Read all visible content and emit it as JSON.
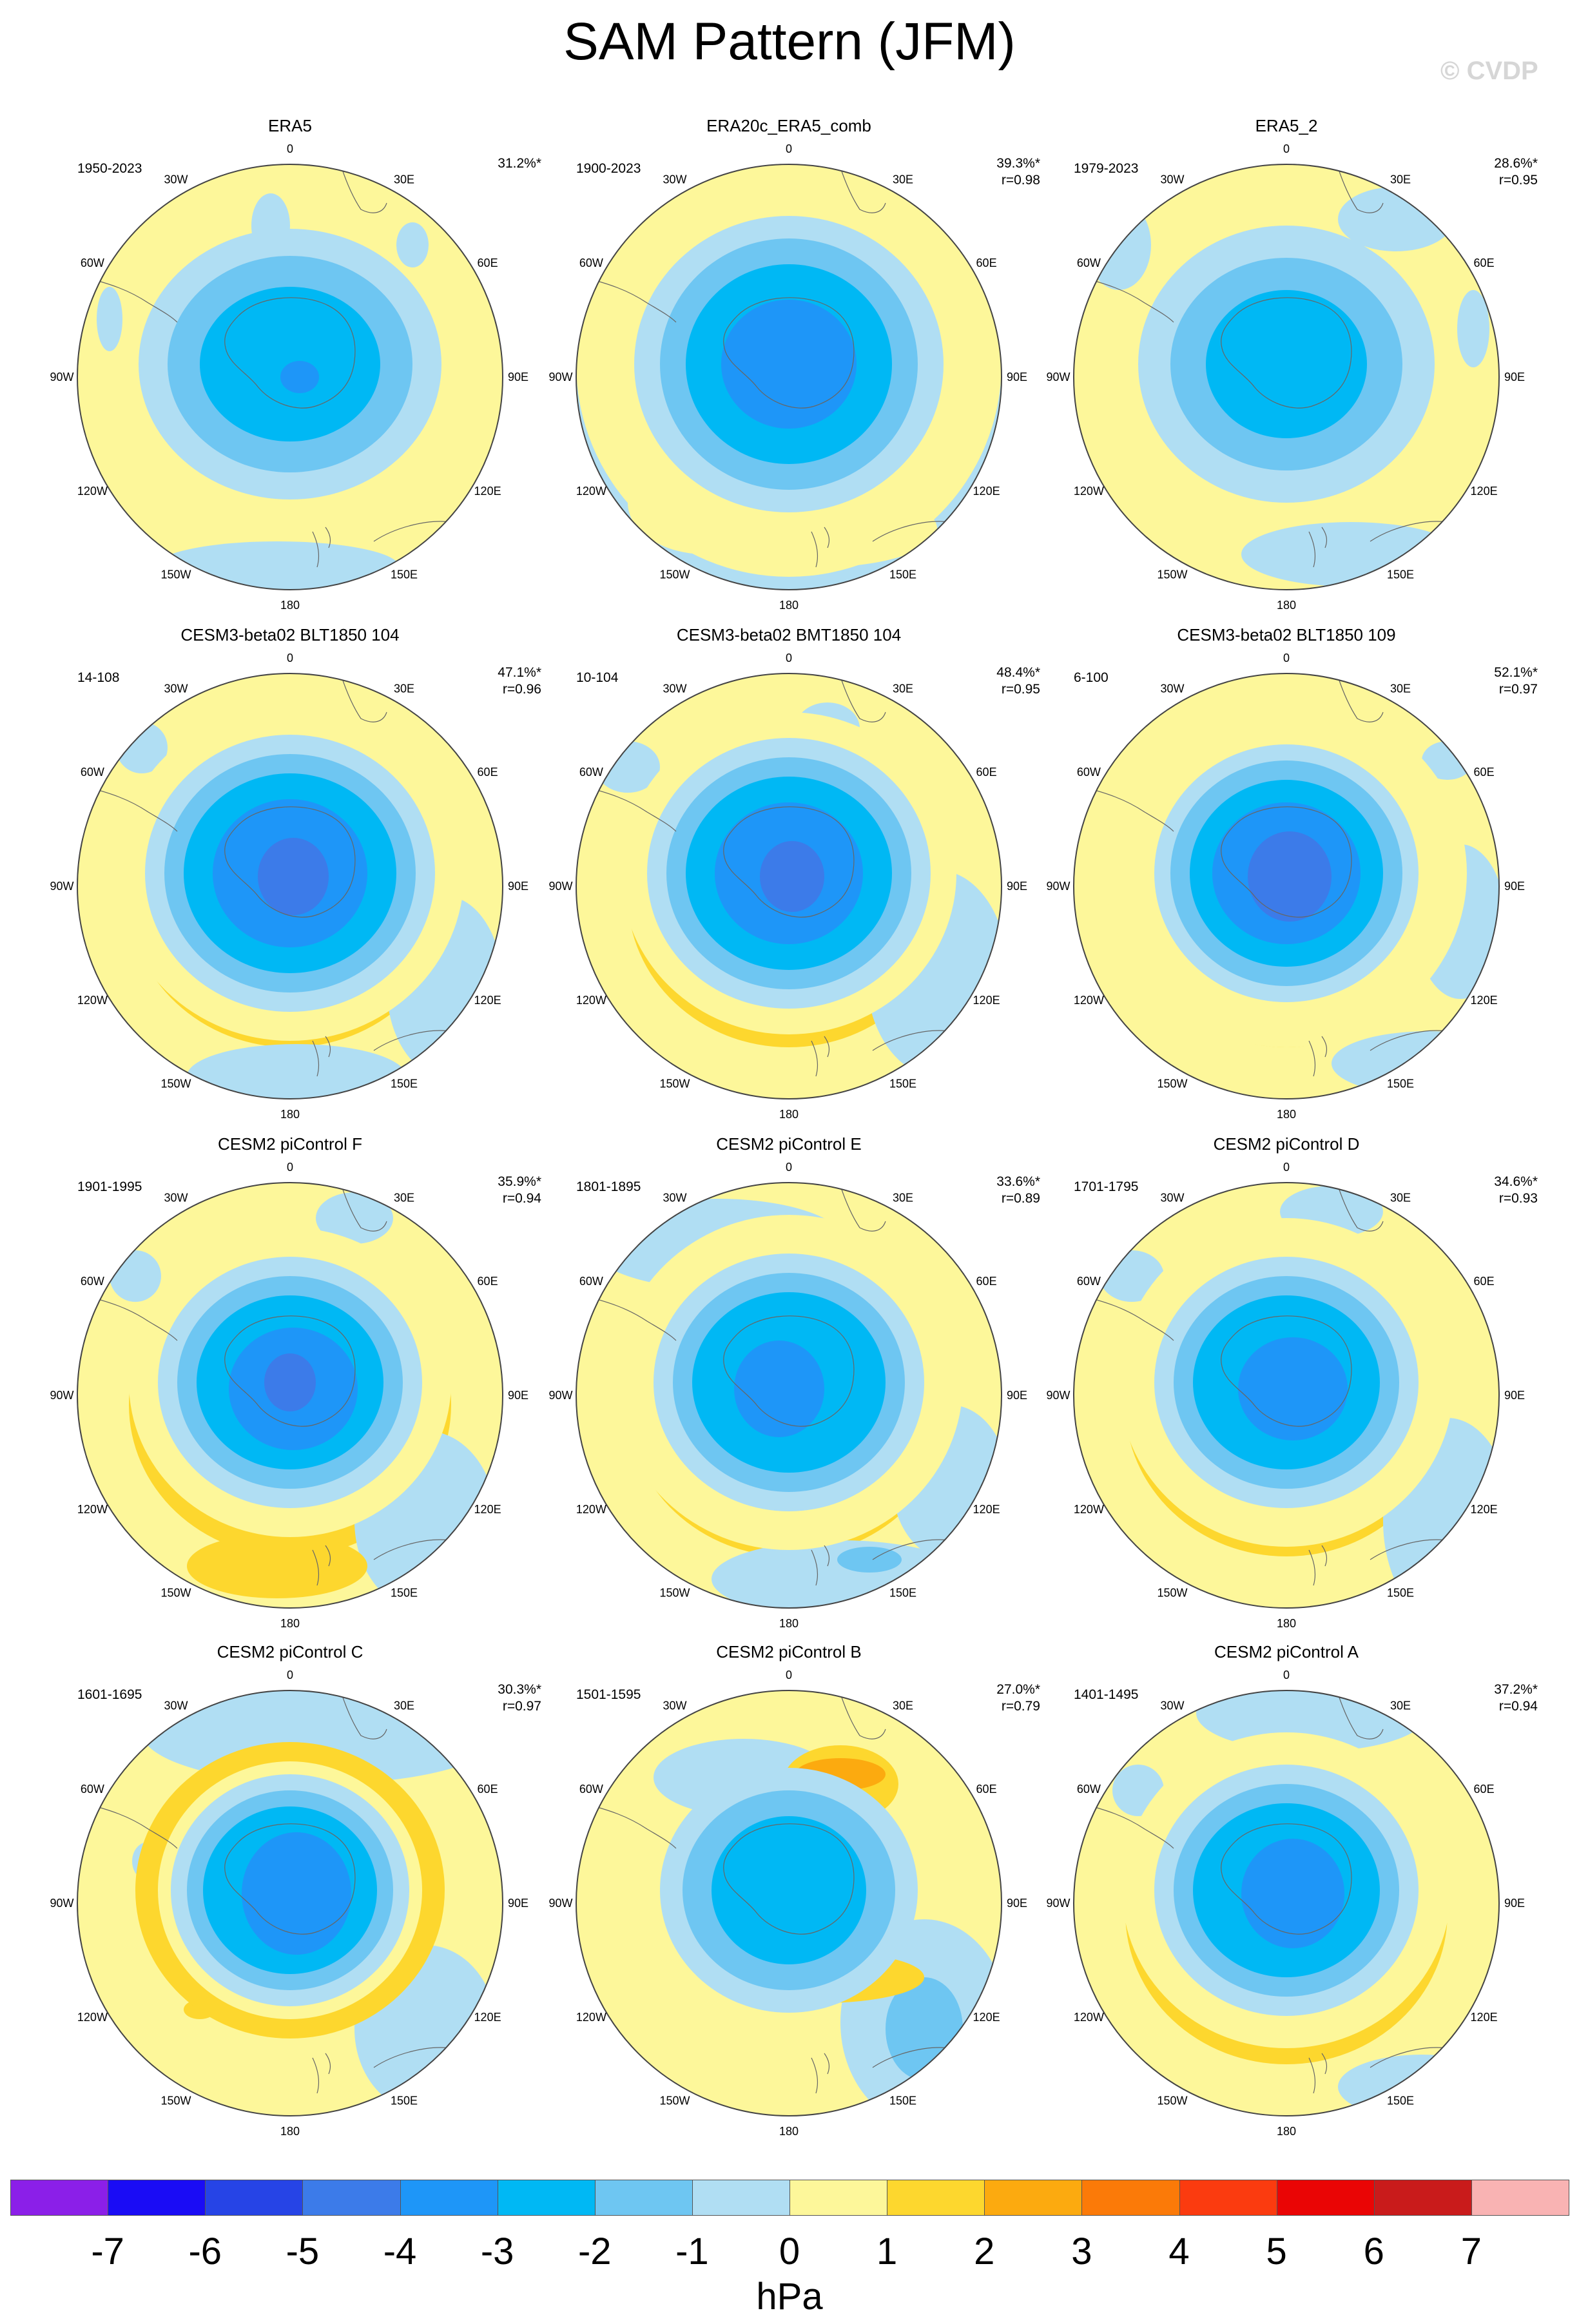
{
  "title": "SAM Pattern (JFM)",
  "watermark": "© CVDP",
  "lon_labels": [
    "0",
    "30E",
    "60E",
    "90E",
    "120E",
    "150E",
    "180",
    "150W",
    "120W",
    "90W",
    "60W",
    "30W"
  ],
  "colors": {
    "n7": "#8b1fe8",
    "n6": "#1a0cf5",
    "n5": "#2644e6",
    "n4": "#3c7be9",
    "n3": "#1e96f8",
    "n2": "#00b8f4",
    "n1": "#6ec6f2",
    "n0": "#b0def3",
    "p0": "#fdf79a",
    "p1": "#fdd72e",
    "p2": "#fcaa0f",
    "p3": "#fb7a08",
    "p4": "#fb3b0f",
    "p5": "#ea0505",
    "p6": "#c91b1b",
    "p7": "#f9b3b3"
  },
  "colorbar": {
    "labels": [
      "-7",
      "-6",
      "-5",
      "-4",
      "-3",
      "-2",
      "-1",
      "0",
      "1",
      "2",
      "3",
      "4",
      "5",
      "6",
      "7"
    ],
    "units": "hPa"
  },
  "panels": [
    {
      "title": "ERA5",
      "period": "1950-2023",
      "pct": "31.2%*",
      "r": "",
      "bg": "p0",
      "ring": "p0",
      "center": [
        [
          "n0",
          235,
          210,
          0,
          0
        ],
        [
          "n1",
          190,
          168,
          0,
          0
        ],
        [
          "n2",
          140,
          120,
          0,
          0
        ],
        [
          "n3",
          30,
          25,
          15,
          20
        ]
      ],
      "blobs": [
        [
          "n0",
          70,
          275,
          20,
          50
        ],
        [
          "n0",
          330,
          660,
          190,
          40
        ],
        [
          "n0",
          320,
          130,
          30,
          50
        ],
        [
          "n0",
          540,
          160,
          25,
          35
        ],
        [
          "n0",
          620,
          690,
          60,
          25
        ],
        [
          "p1",
          530,
          315,
          12,
          35
        ]
      ]
    },
    {
      "title": "ERA20c_ERA5_comb",
      "period": "1900-2023",
      "pct": "39.3%*",
      "r": "r=0.98",
      "bg": "n0",
      "ring": "p0",
      "center": [
        [
          "p0",
          330,
          330,
          0,
          0
        ],
        [
          "n0",
          240,
          230,
          0,
          0
        ],
        [
          "n1",
          200,
          195,
          0,
          0
        ],
        [
          "n2",
          160,
          155,
          0,
          0
        ],
        [
          "n3",
          105,
          100,
          0,
          0
        ]
      ],
      "blobs": [
        [
          "p0",
          520,
          160,
          60,
          120
        ],
        [
          "p0",
          220,
          560,
          120,
          80
        ],
        [
          "p0",
          400,
          600,
          180,
          60
        ]
      ]
    },
    {
      "title": "ERA5_2",
      "period": "1979-2023",
      "pct": "28.6%*",
      "r": "r=0.95",
      "bg": "p0",
      "ring": "p0",
      "center": [
        [
          "n0",
          230,
          215,
          0,
          0
        ],
        [
          "n1",
          180,
          165,
          0,
          0
        ],
        [
          "n2",
          125,
          115,
          0,
          0
        ]
      ],
      "blobs": [
        [
          "n0",
          520,
          120,
          90,
          50
        ],
        [
          "n0",
          90,
          160,
          50,
          70
        ],
        [
          "n0",
          450,
          640,
          170,
          50
        ],
        [
          "n0",
          640,
          290,
          25,
          60
        ],
        [
          "p1",
          300,
          170,
          70,
          22
        ],
        [
          "p1",
          530,
          340,
          14,
          30
        ]
      ]
    },
    {
      "title": "CESM3-beta02 BLT1850 104",
      "period": "14-108",
      "pct": "47.1%*",
      "r": "r=0.96",
      "bg": "p0",
      "ring": "p1",
      "center": [
        [
          "p0",
          270,
          260,
          0,
          0
        ],
        [
          "n0",
          225,
          215,
          0,
          0
        ],
        [
          "n1",
          195,
          185,
          0,
          0
        ],
        [
          "n2",
          165,
          155,
          0,
          0
        ],
        [
          "n3",
          120,
          115,
          0,
          0
        ],
        [
          "n4",
          55,
          60,
          5,
          5
        ]
      ],
      "blobs": [
        [
          "n0",
          590,
          520,
          90,
          140
        ],
        [
          "n0",
          360,
          660,
          170,
          50
        ],
        [
          "n0",
          120,
          150,
          40,
          40
        ],
        [
          "p1",
          170,
          310,
          35,
          70
        ],
        [
          "p2",
          355,
          530,
          30,
          14
        ]
      ]
    },
    {
      "title": "CESM3-beta02 BMT1850 104",
      "period": "10-104",
      "pct": "48.4%*",
      "r": "r=0.95",
      "bg": "p0",
      "ring": "p1",
      "center": [
        [
          "p0",
          260,
          250,
          0,
          0
        ],
        [
          "n0",
          220,
          210,
          0,
          0
        ],
        [
          "n1",
          190,
          180,
          0,
          0
        ],
        [
          "n2",
          160,
          150,
          0,
          0
        ],
        [
          "n3",
          115,
          110,
          0,
          0
        ],
        [
          "n4",
          50,
          55,
          5,
          5
        ]
      ],
      "blobs": [
        [
          "n0",
          580,
          500,
          110,
          160
        ],
        [
          "n0",
          100,
          180,
          50,
          40
        ],
        [
          "n0",
          410,
          120,
          50,
          40
        ],
        [
          "p1",
          305,
          130,
          60,
          18
        ],
        [
          "p2",
          380,
          520,
          60,
          18
        ]
      ]
    },
    {
      "title": "CESM3-beta02 BLT1850 109",
      "period": "6-100",
      "pct": "52.1%*",
      "r": "r=0.97",
      "bg": "p0",
      "ring": "p1",
      "center": [
        [
          "p0",
          280,
          270,
          0,
          0
        ],
        [
          "n0",
          205,
          200,
          0,
          0
        ],
        [
          "n1",
          180,
          175,
          0,
          0
        ],
        [
          "n2",
          150,
          145,
          0,
          0
        ],
        [
          "n3",
          115,
          110,
          0,
          0
        ],
        [
          "n4",
          65,
          70,
          5,
          5
        ]
      ],
      "blobs": [
        [
          "n0",
          620,
          420,
          70,
          120
        ],
        [
          "n0",
          570,
          640,
          150,
          50
        ],
        [
          "n0",
          600,
          170,
          40,
          30
        ],
        [
          "p2",
          515,
          300,
          20,
          50
        ],
        [
          "p2",
          185,
          270,
          20,
          15
        ]
      ]
    },
    {
      "title": "CESM2 piControl F",
      "period": "1901-1995",
      "pct": "35.9%*",
      "r": "r=0.94",
      "bg": "p0",
      "ring": "p1",
      "center": [
        [
          "p0",
          250,
          240,
          0,
          0
        ],
        [
          "n0",
          205,
          195,
          0,
          0
        ],
        [
          "n1",
          175,
          165,
          0,
          0
        ],
        [
          "n2",
          145,
          135,
          0,
          0
        ],
        [
          "n3",
          100,
          95,
          5,
          10
        ],
        [
          "n4",
          40,
          45,
          0,
          0
        ]
      ],
      "blobs": [
        [
          "n0",
          560,
          560,
          110,
          140
        ],
        [
          "n0",
          450,
          90,
          60,
          40
        ],
        [
          "n0",
          110,
          180,
          40,
          40
        ],
        [
          "p2",
          215,
          220,
          20,
          35
        ],
        [
          "p1",
          330,
          630,
          140,
          50
        ]
      ]
    },
    {
      "title": "CESM2 piControl E",
      "period": "1801-1895",
      "pct": "33.6%*",
      "r": "r=0.89",
      "bg": "p0",
      "ring": "p1",
      "center": [
        [
          "p0",
          270,
          260,
          0,
          0
        ],
        [
          "n0",
          210,
          200,
          0,
          0
        ],
        [
          "n1",
          180,
          170,
          0,
          0
        ],
        [
          "n2",
          150,
          140,
          0,
          0
        ],
        [
          "n3",
          70,
          75,
          -15,
          10
        ]
      ],
      "blobs": [
        [
          "n0",
          240,
          130,
          200,
          70
        ],
        [
          "n0",
          430,
          650,
          200,
          60
        ],
        [
          "n0",
          600,
          500,
          90,
          120
        ],
        [
          "n1",
          475,
          620,
          50,
          20
        ],
        [
          "p1",
          160,
          300,
          20,
          40
        ]
      ]
    },
    {
      "title": "CESM2 piControl D",
      "period": "1701-1795",
      "pct": "34.6%*",
      "r": "r=0.93",
      "bg": "p0",
      "ring": "p1",
      "center": [
        [
          "p0",
          260,
          255,
          0,
          0
        ],
        [
          "n0",
          205,
          195,
          0,
          0
        ],
        [
          "n1",
          175,
          165,
          0,
          0
        ],
        [
          "n2",
          145,
          135,
          0,
          0
        ],
        [
          "n3",
          85,
          80,
          10,
          10
        ]
      ],
      "blobs": [
        [
          "n0",
          600,
          560,
          100,
          160
        ],
        [
          "n0",
          420,
          80,
          80,
          40
        ],
        [
          "n0",
          110,
          180,
          50,
          40
        ],
        [
          "p2",
          525,
          310,
          16,
          40
        ],
        [
          "p1",
          175,
          330,
          25,
          45
        ]
      ]
    },
    {
      "title": "CESM2 piControl C",
      "period": "1601-1695",
      "pct": "30.3%*",
      "r": "r=0.97",
      "bg": "p0",
      "ring": "p0",
      "center": [
        [
          "p1",
          240,
          230,
          0,
          0
        ],
        [
          "p0",
          205,
          200,
          0,
          0
        ],
        [
          "n0",
          185,
          180,
          0,
          0
        ],
        [
          "n1",
          160,
          155,
          0,
          0
        ],
        [
          "n2",
          135,
          130,
          0,
          0
        ],
        [
          "n3",
          85,
          95,
          10,
          5
        ]
      ],
      "blobs": [
        [
          "n0",
          400,
          100,
          280,
          80
        ],
        [
          "n0",
          560,
          560,
          110,
          130
        ],
        [
          "n0",
          130,
          300,
          25,
          30
        ],
        [
          "p1",
          525,
          320,
          30,
          55
        ],
        [
          "p1",
          210,
          530,
          25,
          15
        ]
      ]
    },
    {
      "title": "CESM2 piControl B",
      "period": "1501-1595",
      "pct": "27.0%*",
      "r": "r=0.79",
      "bg": "p0",
      "ring": "p0",
      "center": [
        [
          "n0",
          200,
          190,
          0,
          0
        ],
        [
          "n1",
          165,
          155,
          0,
          0
        ],
        [
          "n2",
          120,
          115,
          0,
          0
        ]
      ],
      "blobs": [
        [
          "n0",
          280,
          170,
          140,
          60
        ],
        [
          "n0",
          560,
          550,
          130,
          160
        ],
        [
          "n1",
          560,
          560,
          60,
          80
        ],
        [
          "p1",
          430,
          180,
          90,
          60
        ],
        [
          "p2",
          430,
          165,
          70,
          25
        ],
        [
          "p1",
          200,
          330,
          40,
          70
        ],
        [
          "p1",
          400,
          480,
          160,
          40
        ]
      ]
    },
    {
      "title": "CESM2 piControl A",
      "period": "1401-1495",
      "pct": "37.2%*",
      "r": "r=0.94",
      "bg": "p0",
      "ring": "p1",
      "center": [
        [
          "p0",
          255,
          245,
          0,
          0
        ],
        [
          "n0",
          205,
          195,
          0,
          0
        ],
        [
          "n1",
          175,
          165,
          0,
          0
        ],
        [
          "n2",
          145,
          135,
          0,
          0
        ],
        [
          "n3",
          80,
          85,
          10,
          5
        ]
      ],
      "blobs": [
        [
          "n0",
          390,
          70,
          180,
          60
        ],
        [
          "n0",
          560,
          650,
          130,
          50
        ],
        [
          "n0",
          120,
          190,
          40,
          40
        ],
        [
          "p2",
          530,
          310,
          20,
          45
        ],
        [
          "p1",
          165,
          320,
          30,
          50
        ]
      ]
    }
  ]
}
